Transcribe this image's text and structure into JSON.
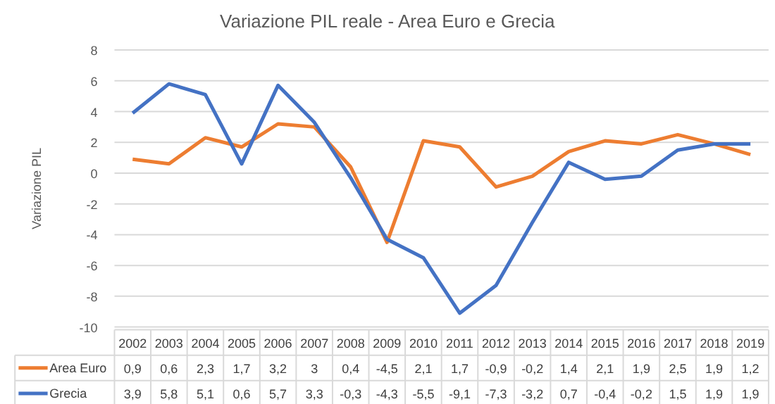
{
  "chart_data": {
    "type": "line",
    "title": "Variazione PIL reale - Area Euro e Grecia",
    "ylabel": "Variazione PIL",
    "categories": [
      "2002",
      "2003",
      "2004",
      "2005",
      "2006",
      "2007",
      "2008",
      "2009",
      "2010",
      "2011",
      "2012",
      "2013",
      "2014",
      "2015",
      "2016",
      "2017",
      "2018",
      "2019"
    ],
    "series": [
      {
        "name": "Area Euro",
        "color": "#ed7d31",
        "values": [
          0.9,
          0.6,
          2.3,
          1.7,
          3.2,
          3,
          0.4,
          -4.5,
          2.1,
          1.7,
          -0.9,
          -0.2,
          1.4,
          2.1,
          1.9,
          2.5,
          1.9,
          1.2
        ],
        "value_labels": [
          "0,9",
          "0,6",
          "2,3",
          "1,7",
          "3,2",
          "3",
          "0,4",
          "-4,5",
          "2,1",
          "1,7",
          "-0,9",
          "-0,2",
          "1,4",
          "2,1",
          "1,9",
          "2,5",
          "1,9",
          "1,2"
        ]
      },
      {
        "name": "Grecia",
        "color": "#4472c4",
        "values": [
          3.9,
          5.8,
          5.1,
          0.6,
          5.7,
          3.3,
          -0.3,
          -4.3,
          -5.5,
          -9.1,
          -7.3,
          -3.2,
          0.7,
          -0.4,
          -0.2,
          1.5,
          1.9,
          1.9
        ],
        "value_labels": [
          "3,9",
          "5,8",
          "5,1",
          "0,6",
          "5,7",
          "3,3",
          "-0,3",
          "-4,3",
          "-5,5",
          "-9,1",
          "-7,3",
          "-3,2",
          "0,7",
          "-0,4",
          "-0,2",
          "1,5",
          "1,9",
          "1,9"
        ]
      }
    ],
    "ylim": [
      -10,
      8
    ],
    "yticks": [
      -10,
      -8,
      -6,
      -4,
      -2,
      0,
      2,
      4,
      6,
      8
    ],
    "grid": "y",
    "legend": "bottom",
    "marker": "none",
    "line_style": "solid"
  }
}
